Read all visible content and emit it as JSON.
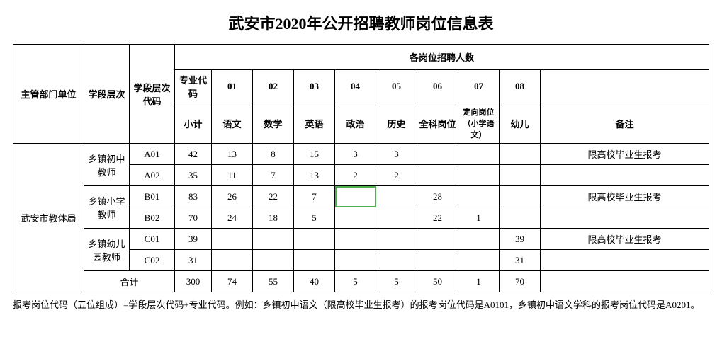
{
  "title": "武安市2020年公开招聘教师岗位信息表",
  "headers": {
    "dept": "主管部门单位",
    "level": "学段层次",
    "level_code": "学段层次代码",
    "group": "各岗位招聘人数",
    "subj_code": "专业代码",
    "codes": [
      "01",
      "02",
      "03",
      "04",
      "05",
      "06",
      "07",
      "08"
    ],
    "subtotal": "小计",
    "subjects": [
      "语文",
      "数学",
      "英语",
      "政治",
      "历史",
      "全科岗位",
      "定向岗位（小学语文）",
      "幼儿"
    ],
    "remark": "备注"
  },
  "dept": "武安市教体局",
  "groups": [
    {
      "level": "乡镇初中教师",
      "rows": [
        {
          "code": "A01",
          "subtotal": "42",
          "v": [
            "13",
            "8",
            "15",
            "3",
            "3",
            "",
            "",
            ""
          ],
          "remark": "限高校毕业生报考"
        },
        {
          "code": "A02",
          "subtotal": "35",
          "v": [
            "11",
            "7",
            "13",
            "2",
            "2",
            "",
            "",
            ""
          ],
          "remark": ""
        }
      ]
    },
    {
      "level": "乡镇小学教师",
      "rows": [
        {
          "code": "B01",
          "subtotal": "83",
          "v": [
            "26",
            "22",
            "7",
            "",
            "",
            "28",
            "",
            ""
          ],
          "remark": "限高校毕业生报考",
          "selected_col": 3
        },
        {
          "code": "B02",
          "subtotal": "70",
          "v": [
            "24",
            "18",
            "5",
            "",
            "",
            "22",
            "1",
            ""
          ],
          "remark": ""
        }
      ]
    },
    {
      "level": "乡镇幼儿园教师",
      "rows": [
        {
          "code": "C01",
          "subtotal": "39",
          "v": [
            "",
            "",
            "",
            "",
            "",
            "",
            "",
            "39"
          ],
          "remark": "限高校毕业生报考"
        },
        {
          "code": "C02",
          "subtotal": "31",
          "v": [
            "",
            "",
            "",
            "",
            "",
            "",
            "",
            "31"
          ],
          "remark": ""
        }
      ]
    }
  ],
  "total_label": "合计",
  "total": {
    "subtotal": "300",
    "v": [
      "74",
      "55",
      "40",
      "5",
      "5",
      "50",
      "1",
      "70"
    ],
    "remark": ""
  },
  "footnote": "报考岗位代码（五位组成）=学段层次代码+专业代码。例如：乡镇初中语文（限高校毕业生报考）的报考岗位代码是A0101，乡镇初中语文学科的报考岗位代码是A0201。"
}
